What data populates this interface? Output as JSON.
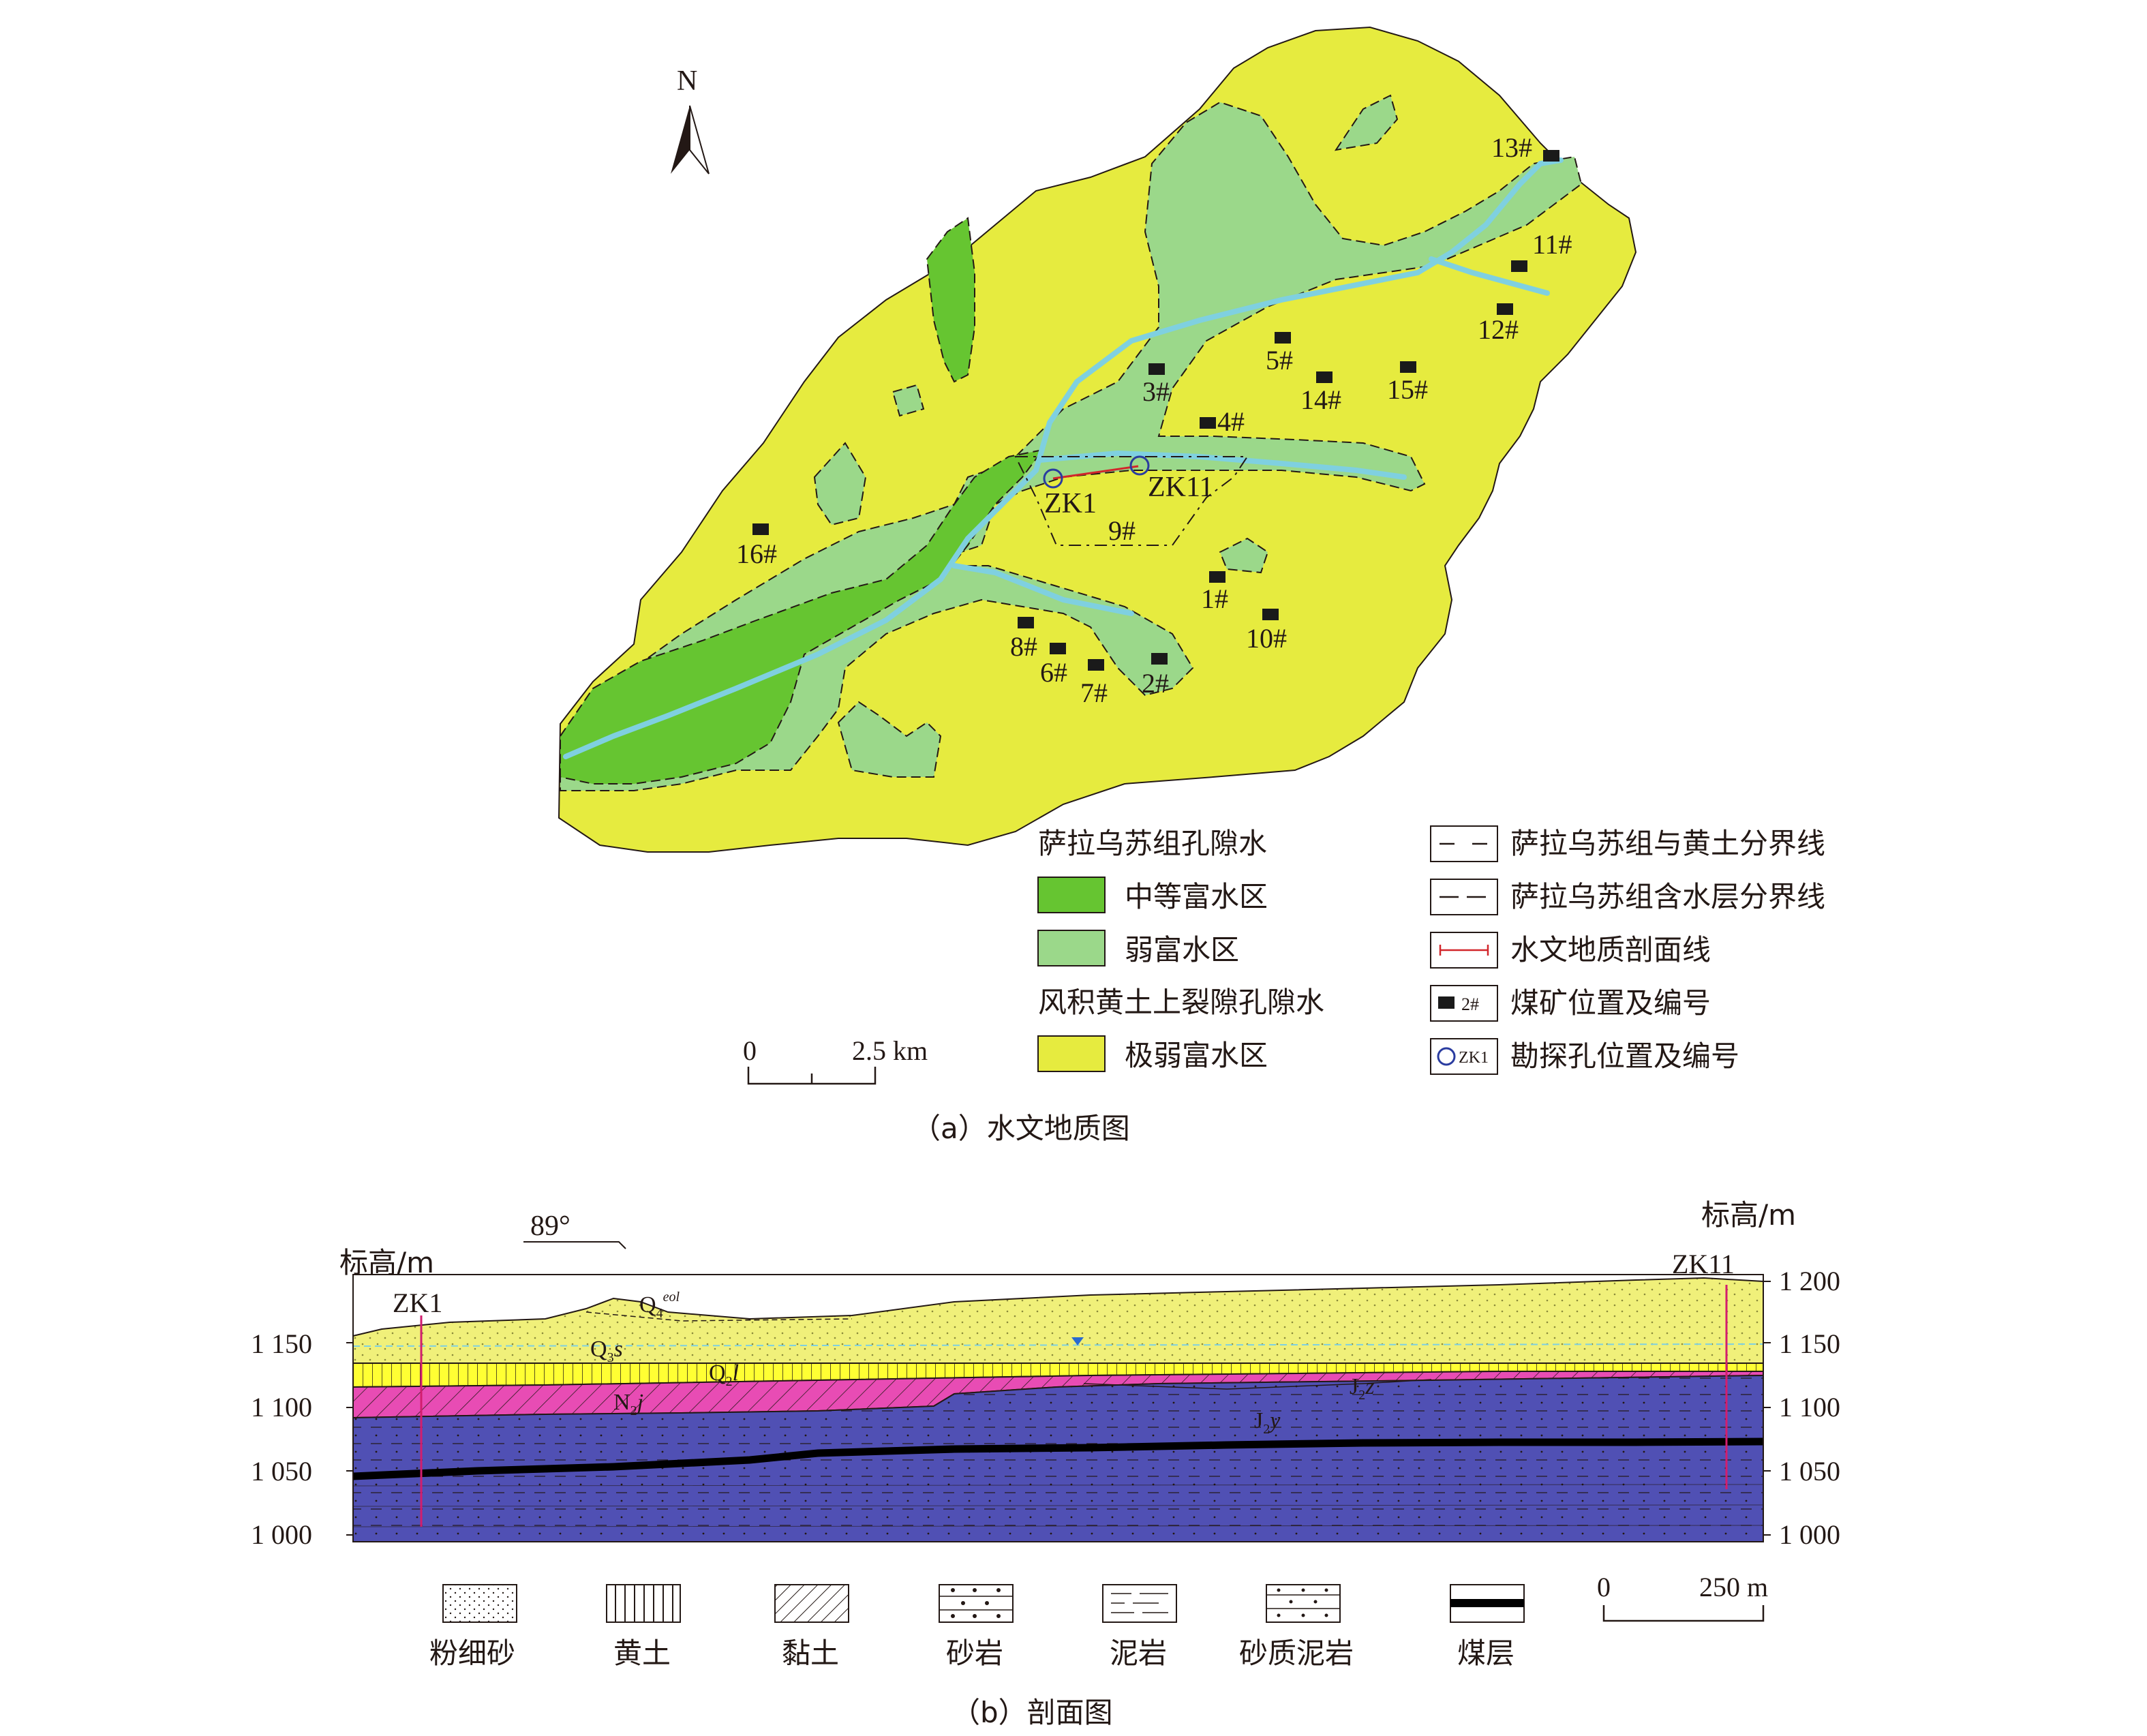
{
  "map": {
    "north_label": "N",
    "mines": [
      {
        "id": "13#"
      },
      {
        "id": "11#"
      },
      {
        "id": "12#"
      },
      {
        "id": "5#"
      },
      {
        "id": "3#"
      },
      {
        "id": "14#"
      },
      {
        "id": "15#"
      },
      {
        "id": "4#"
      },
      {
        "id": "16#"
      },
      {
        "id": "9#"
      },
      {
        "id": "1#"
      },
      {
        "id": "10#"
      },
      {
        "id": "8#"
      },
      {
        "id": "6#"
      },
      {
        "id": "7#"
      },
      {
        "id": "2#"
      }
    ],
    "boreholes": [
      {
        "id": "ZK1"
      },
      {
        "id": "ZK11"
      }
    ],
    "scale": {
      "zero": "0",
      "label": "2.5 km"
    },
    "caption": "（a）水文地质图",
    "colors": {
      "medium": "#66c531",
      "weak": "#9bd88a",
      "very_weak": "#e6eb3f",
      "river": "#7fd0e0"
    }
  },
  "legend_left": {
    "group1_title": "萨拉乌苏组孔隙水",
    "medium": "中等富水区",
    "weak": "弱富水区",
    "group2_title": "风积黄土上裂隙孔隙水",
    "very_weak": "极弱富水区"
  },
  "legend_right": {
    "boundary_loess": "萨拉乌苏组与黄土分界线",
    "boundary_aquifer": "萨拉乌苏组含水层分界线",
    "section_line": "水文地质剖面线",
    "mine": "煤矿位置及编号",
    "mine_icon_text": "2#",
    "borehole": "勘探孔位置及编号",
    "borehole_icon_text": "ZK1"
  },
  "section": {
    "azimuth": "89°",
    "y_title_left": "标高/m",
    "y_title_right": "标高/m",
    "y_ticks": [
      "1 200",
      "1 150",
      "1 100",
      "1 050",
      "1 000"
    ],
    "left_ticks": [
      "1 150",
      "1 100",
      "1 050",
      "1 000"
    ],
    "bh_left": "ZK1",
    "bh_right": "ZK11",
    "units": {
      "Q4": "Q",
      "Q4_sub": "4",
      "Q4_sup": "eol",
      "Q3": "Q",
      "Q3_sub": "3",
      "Q3_s": "s",
      "Q2": "Q",
      "Q2_sub": "2",
      "Q2_l": "l",
      "N2": "N",
      "N2_sub": "2",
      "N2_j": "j",
      "J2z": "J",
      "J2z_sub": "2",
      "J2z_z": "z",
      "J2y": "J",
      "J2y_sub": "2",
      "J2y_y": "y"
    },
    "scale": {
      "zero": "0",
      "label": "250 m"
    },
    "caption": "（b）剖面图",
    "colors": {
      "sand": "#f0f07a",
      "loess": "#ffff33",
      "clay": "#e84cb4",
      "rock": "#5050b4",
      "coal": "#000000"
    }
  },
  "lithology_legend": [
    "粉细砂",
    "黄土",
    "黏土",
    "砂岩",
    "泥岩",
    "砂质泥岩",
    "煤层"
  ]
}
